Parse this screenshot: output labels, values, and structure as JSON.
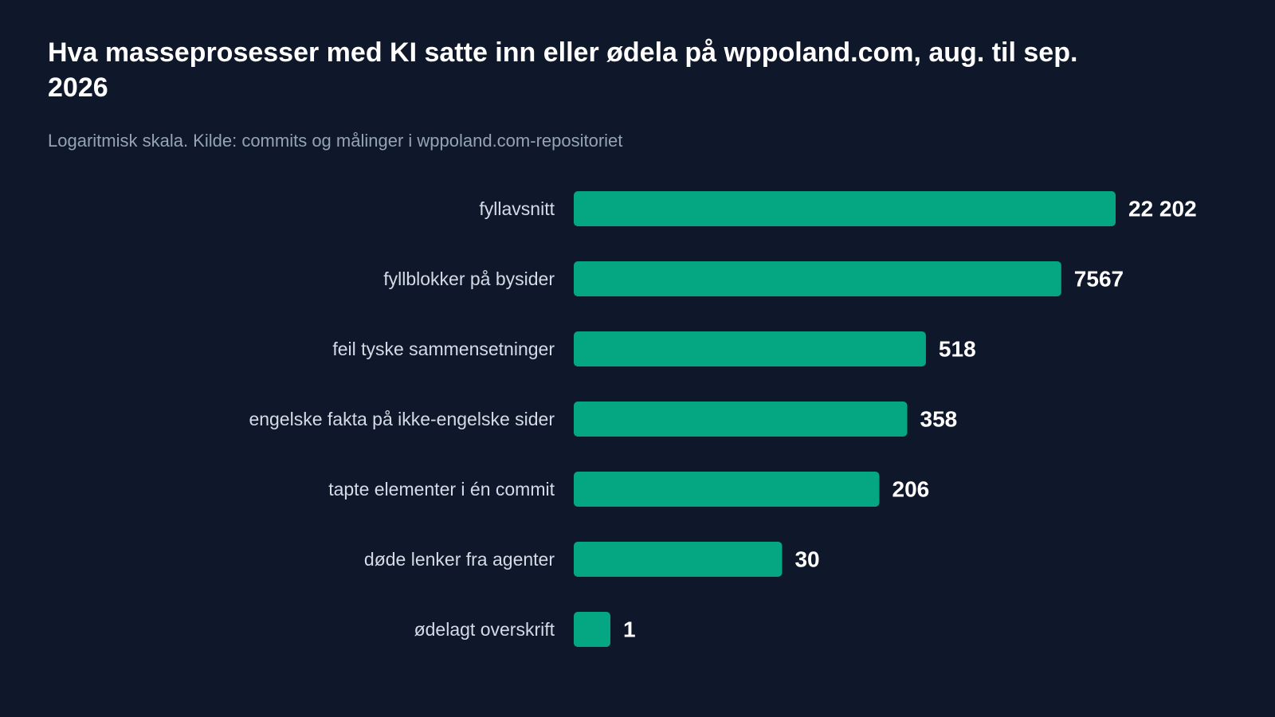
{
  "page": {
    "title": "Hva masseprosesser med KI satte inn eller ødela på wppoland.com, aug. til sep. 2026",
    "subtitle": "Logaritmisk skala. Kilde: commits og målinger i wppoland.com-repositoriet"
  },
  "colors": {
    "background": "#0f172a",
    "bar": "#05a783",
    "category_label": "#d5dbe5",
    "value_label": "#ffffff"
  },
  "chart_data": {
    "type": "bar",
    "orientation": "horizontal",
    "scale": "log",
    "title": "Hva masseprosesser med KI satte inn eller ødela på wppoland.com, aug. til sep. 2026",
    "subtitle": "Logaritmisk skala. Kilde: commits og målinger i wppoland.com-repositoriet",
    "categories": [
      "fyllavsnitt",
      "fyllblokker på bysider",
      "feil tyske sammensetninger",
      "engelske fakta på ikke-engelske sider",
      "tapte elementer i én commit",
      "døde lenker fra agenter",
      "ødelagt overskrift"
    ],
    "values": [
      22202,
      7567,
      518,
      358,
      206,
      30,
      1
    ],
    "value_labels": [
      "22 202",
      "7567",
      "518",
      "358",
      "206",
      "30",
      "1"
    ],
    "grid": false,
    "legend": "none"
  }
}
